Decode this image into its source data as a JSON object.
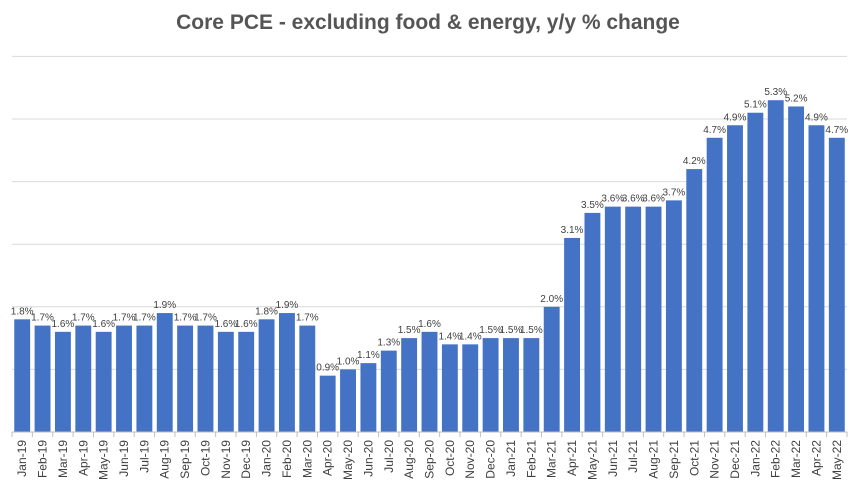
{
  "chart_data": {
    "type": "bar",
    "title": "Core PCE - excluding food & energy, y/y % change",
    "xlabel": "",
    "ylabel": "",
    "ylim": [
      0,
      6
    ],
    "grid": "horizontal",
    "legend": "none",
    "bar_color": "#4472c4",
    "categories": [
      "Jan-19",
      "Feb-19",
      "Mar-19",
      "Apr-19",
      "May-19",
      "Jun-19",
      "Jul-19",
      "Aug-19",
      "Sep-19",
      "Oct-19",
      "Nov-19",
      "Dec-19",
      "Jan-20",
      "Feb-20",
      "Mar-20",
      "Apr-20",
      "May-20",
      "Jun-20",
      "Jul-20",
      "Aug-20",
      "Sep-20",
      "Oct-20",
      "Nov-20",
      "Dec-20",
      "Jan-21",
      "Feb-21",
      "Mar-21",
      "Apr-21",
      "May-21",
      "Jun-21",
      "Jul-21",
      "Aug-21",
      "Sep-21",
      "Oct-21",
      "Nov-21",
      "Dec-21",
      "Jan-22",
      "Feb-22",
      "Mar-22",
      "Apr-22",
      "May-22"
    ],
    "values": [
      1.8,
      1.7,
      1.6,
      1.7,
      1.6,
      1.7,
      1.7,
      1.9,
      1.7,
      1.7,
      1.6,
      1.6,
      1.8,
      1.9,
      1.7,
      0.9,
      1.0,
      1.1,
      1.3,
      1.5,
      1.6,
      1.4,
      1.4,
      1.5,
      1.5,
      1.5,
      2.0,
      3.1,
      3.5,
      3.6,
      3.6,
      3.6,
      3.7,
      4.2,
      4.7,
      4.9,
      5.1,
      5.3,
      5.2,
      4.9,
      4.7
    ],
    "data_labels": [
      "1.8%",
      "1.7%",
      "1.6%",
      "1.7%",
      "1.6%",
      "1.7%",
      "1.7%",
      "1.9%",
      "1.7%",
      "1.7%",
      "1.6%",
      "1.6%",
      "1.8%",
      "1.9%",
      "1.7%",
      "0.9%",
      "1.0%",
      "1.1%",
      "1.3%",
      "1.5%",
      "1.6%",
      "1.4%",
      "1.4%",
      "1.5%",
      "1.5%",
      "1.5%",
      "2.0%",
      "3.1%",
      "3.5%",
      "3.6%",
      "3.6%",
      "3.6%",
      "3.7%",
      "4.2%",
      "4.7%",
      "4.9%",
      "5.1%",
      "5.3%",
      "5.2%",
      "4.9%",
      "4.7%"
    ]
  }
}
